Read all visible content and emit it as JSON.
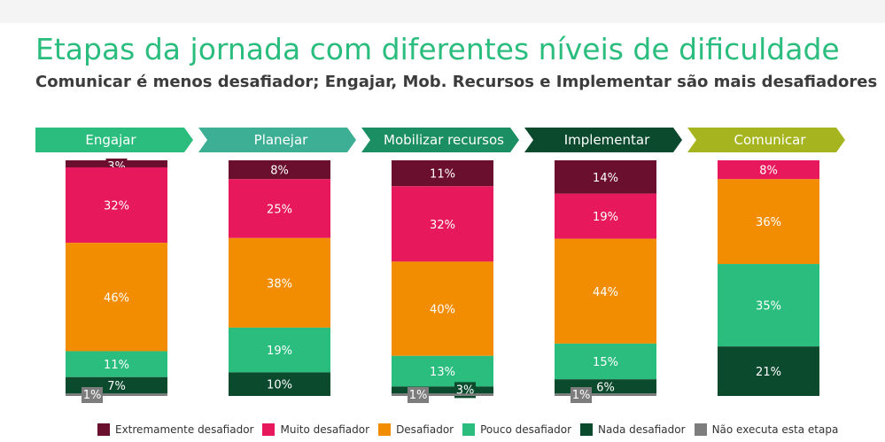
{
  "title": "Etapas da jornada com diferentes níveis de dificuldade",
  "subtitle": "Comunicar é menos desafiador; Engajar, Mob. Recursos e Implementar são mais desafiadores",
  "chart_data": {
    "type": "bar",
    "stacked": true,
    "unit": "%",
    "categories": [
      "Engajar",
      "Planejar",
      "Mobilizar recursos",
      "Implementar",
      "Comunicar"
    ],
    "header_colors": [
      "#2bbd7e",
      "#3daf94",
      "#1c8e64",
      "#0c4a2e",
      "#a6b41f"
    ],
    "series": [
      {
        "name": "Extremamente desafiador",
        "color": "#6b0f2f",
        "label_color": "#ffffff",
        "values": [
          3,
          8,
          11,
          14,
          null
        ]
      },
      {
        "name": "Muito desafiador",
        "color": "#e8185c",
        "label_color": "#ffffff",
        "values": [
          32,
          25,
          32,
          19,
          8
        ]
      },
      {
        "name": "Desafiador",
        "color": "#f28c00",
        "label_color": "#ffffff",
        "values": [
          46,
          38,
          40,
          44,
          36
        ]
      },
      {
        "name": "Pouco desafiador",
        "color": "#2bbd7e",
        "label_color": "#ffffff",
        "values": [
          11,
          19,
          13,
          15,
          35
        ]
      },
      {
        "name": "Nada desafiador",
        "color": "#0c4a2e",
        "label_color": "#ffffff",
        "values": [
          7,
          10,
          3,
          6,
          21
        ]
      },
      {
        "name": "Não executa esta etapa",
        "color": "#7d7d7d",
        "label_color": "#ffffff",
        "values": [
          1,
          null,
          1,
          1,
          null
        ]
      }
    ],
    "legend_position": "bottom",
    "grid": false
  }
}
